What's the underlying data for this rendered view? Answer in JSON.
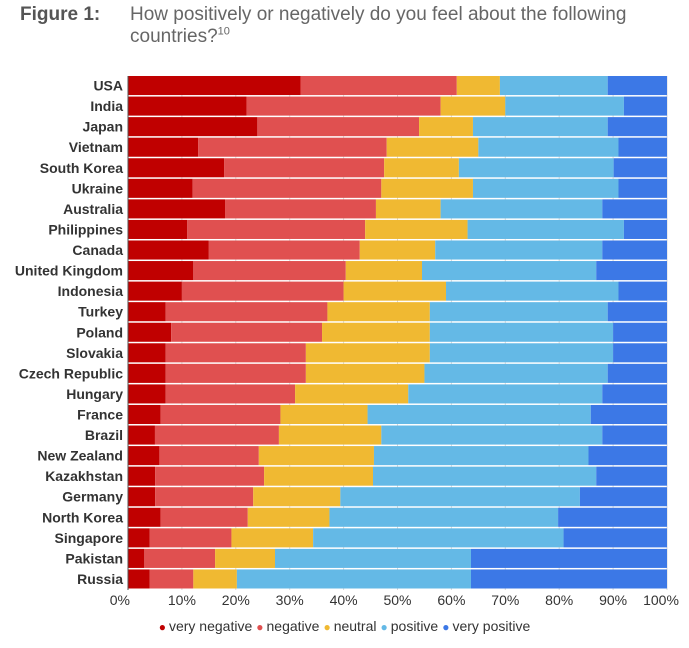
{
  "figure": {
    "label": "Figure 1:",
    "title": "How positively or negatively do you feel about the following countries?",
    "footnote": "10"
  },
  "chart_data": {
    "type": "bar",
    "orientation": "horizontal",
    "stacked": true,
    "categories": [
      "USA",
      "India",
      "Japan",
      "Vietnam",
      "South Korea",
      "Ukraine",
      "Australia",
      "Philippines",
      "Canada",
      "United Kingdom",
      "Indonesia",
      "Turkey",
      "Poland",
      "Slovakia",
      "Czech Republic",
      "Hungary",
      "France",
      "Brazil",
      "New Zealand",
      "Kazakhstan",
      "Germany",
      "North Korea",
      "Singapore",
      "Pakistan",
      "Russia"
    ],
    "series": [
      {
        "name": "very negative",
        "color": "#c00000",
        "values": [
          32,
          22,
          24,
          13,
          18,
          12,
          18,
          11,
          15,
          12,
          10,
          7,
          8,
          7,
          7,
          7,
          6,
          5,
          6,
          5,
          5,
          6,
          4,
          3,
          4
        ]
      },
      {
        "name": "negative",
        "color": "#e05050",
        "values": [
          29,
          36,
          30,
          35,
          30,
          35,
          28,
          33,
          28,
          28,
          30,
          30,
          28,
          26,
          26,
          24,
          22,
          23,
          19,
          20,
          18,
          16,
          15,
          13,
          8
        ]
      },
      {
        "name": "neutral",
        "color": "#f0b932",
        "values": [
          8,
          12,
          10,
          17,
          14,
          17,
          12,
          19,
          14,
          14,
          19,
          19,
          20,
          23,
          22,
          21,
          16,
          19,
          22,
          20,
          16,
          15,
          15,
          11,
          8
        ]
      },
      {
        "name": "positive",
        "color": "#64b9e6",
        "values": [
          20,
          22,
          25,
          26,
          29,
          27,
          30,
          29,
          31,
          32,
          32,
          33,
          34,
          34,
          34,
          36,
          41,
          41,
          41,
          41,
          44,
          42,
          46,
          36,
          43
        ]
      },
      {
        "name": "very positive",
        "color": "#3c78e6",
        "values": [
          11,
          8,
          11,
          9,
          10,
          9,
          12,
          8,
          12,
          13,
          9,
          11,
          10,
          10,
          11,
          12,
          14,
          12,
          15,
          13,
          16,
          20,
          19,
          36,
          36
        ]
      }
    ],
    "xticks": [
      "0%",
      "10%",
      "20%",
      "30%",
      "40%",
      "50%",
      "60%",
      "70%",
      "80%",
      "90%",
      "100%"
    ],
    "xlim": [
      0,
      100
    ],
    "grid": true,
    "legend": "bottom"
  }
}
